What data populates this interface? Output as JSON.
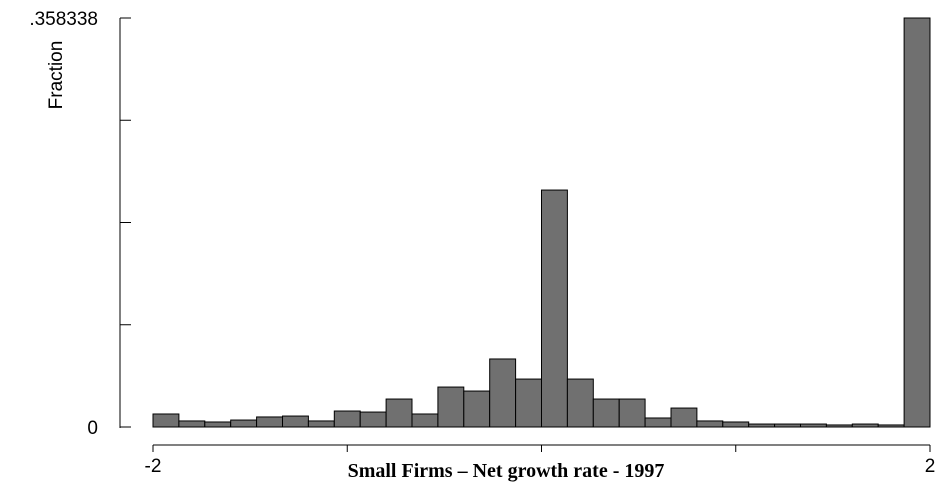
{
  "chart_data": {
    "type": "histogram",
    "x_label": "Small Firms – Net growth rate - 1997",
    "y_label": "Fraction",
    "bins": [
      -2,
      -1.8667,
      -1.7333,
      -1.6,
      -1.4667,
      -1.3333,
      -1.2,
      -1.0667,
      -0.9333,
      -0.8,
      -0.6667,
      -0.5333,
      -0.4,
      -0.2667,
      -0.1333,
      0,
      0.1333,
      0.2667,
      0.4,
      0.5333,
      0.6667,
      0.8,
      0.9333,
      1.0667,
      1.2,
      1.3333,
      1.4667,
      1.6,
      1.7333,
      1.8667,
      2
    ],
    "values": [
      0.0114,
      0.0053,
      0.0044,
      0.0061,
      0.0088,
      0.0096,
      0.0053,
      0.014,
      0.0131,
      0.0245,
      0.0114,
      0.035,
      0.0315,
      0.0596,
      0.042,
      0.2076,
      0.042,
      0.0245,
      0.0245,
      0.0079,
      0.0166,
      0.0053,
      0.0044,
      0.0026,
      0.0026,
      0.0026,
      0.0018,
      0.0026,
      0.0018,
      0.358338
    ],
    "color": "#707070",
    "xlim": [
      -2,
      2
    ],
    "xticks": [
      -2,
      2
    ],
    "xminor_ticks": [
      -1,
      0,
      1
    ],
    "ylim": [
      0,
      0.358338
    ],
    "yticks": [
      0,
      {
        "value": 0.358338,
        "label": ".358338"
      }
    ],
    "yminor_ticks": [
      0.0895845,
      0.179169,
      0.2687535
    ]
  }
}
